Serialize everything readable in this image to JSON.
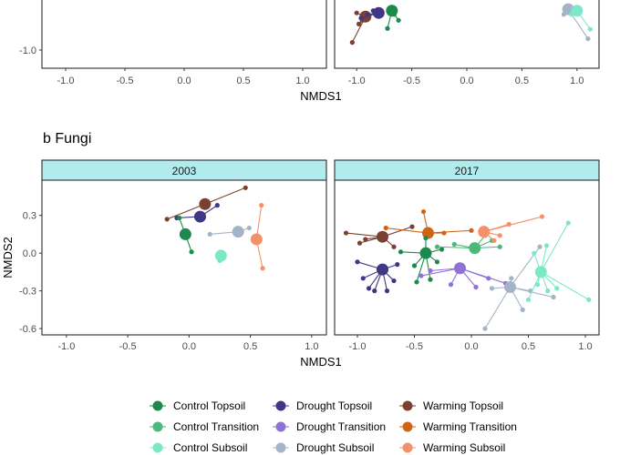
{
  "colors": {
    "Control Topsoil": "#1b8a4c",
    "Control Transition": "#4cb87a",
    "Control Subsoil": "#7de8c8",
    "Drought Topsoil": "#3f3785",
    "Drought Transition": "#8f72d6",
    "Drought Subsoil": "#a3b4c8",
    "Warming Topsoil": "#7a4030",
    "Warming Transition": "#cf6417",
    "Warming Subsoil": "#f4916a",
    "strip_fill": "#b2ebed"
  },
  "legend": [
    "Control Topsoil",
    "Drought Topsoil",
    "Warming Topsoil",
    "Control Transition",
    "Drought Transition",
    "Warming Transition",
    "Control Subsoil",
    "Drought Subsoil",
    "Warming Subsoil"
  ],
  "chart_data": [
    {
      "type": "scatter",
      "title": "",
      "xlabel": "NMDS1",
      "ylabel": "",
      "x_ticks": [
        "-1.0",
        "-0.5",
        "0.0",
        "0.5",
        "1.0"
      ],
      "y_ticks": [
        "-1.0"
      ],
      "xlim": [
        -1.2,
        1.2
      ],
      "facets": [
        {
          "label": "",
          "xlim": [
            -1.2,
            1.2
          ],
          "ylim": [
            -1.2,
            -0.25
          ],
          "groups": []
        },
        {
          "label": "",
          "xlim": [
            -1.2,
            1.2
          ],
          "ylim": [
            -1.2,
            -0.25
          ],
          "groups": [
            {
              "name": "Warming Topsoil",
              "centroid": [
                -0.92,
                -0.5
              ],
              "points": [
                [
                  -1.04,
                  -0.85
                ],
                [
                  -0.98,
                  -0.6
                ],
                [
                  -0.95,
                  -0.55
                ],
                [
                  -1.0,
                  -0.45
                ]
              ]
            },
            {
              "name": "Drought Topsoil",
              "centroid": [
                -0.8,
                -0.45
              ],
              "points": [
                [
                  -0.96,
                  -0.52
                ],
                [
                  -0.9,
                  -0.47
                ],
                [
                  -0.85,
                  -0.42
                ]
              ]
            },
            {
              "name": "Control Topsoil",
              "centroid": [
                -0.68,
                -0.42
              ],
              "points": [
                [
                  -0.72,
                  -0.66
                ],
                [
                  -0.62,
                  -0.55
                ],
                [
                  -0.66,
                  -0.47
                ]
              ]
            },
            {
              "name": "Drought Subsoil",
              "centroid": [
                0.92,
                -0.4
              ],
              "points": [
                [
                  1.1,
                  -0.8
                ],
                [
                  0.88,
                  -0.47
                ]
              ]
            },
            {
              "name": "Control Subsoil",
              "centroid": [
                1.0,
                -0.42
              ],
              "points": [
                [
                  1.12,
                  -0.67
                ],
                [
                  0.95,
                  -0.47
                ]
              ]
            }
          ]
        }
      ]
    },
    {
      "type": "scatter",
      "title": "b  Fungi",
      "xlabel": "NMDS1",
      "ylabel": "NMDS2",
      "x_ticks": [
        "-1.0",
        "-0.5",
        "0.0",
        "0.5",
        "1.0"
      ],
      "y_ticks": [
        "0.3",
        "0.0",
        "-0.3",
        "-0.6"
      ],
      "xlim": [
        -1.2,
        1.12
      ],
      "ylim": [
        -0.65,
        0.58
      ],
      "facets": [
        {
          "label": "2003",
          "xlim": [
            -1.2,
            1.12
          ],
          "ylim": [
            -0.65,
            0.58
          ],
          "groups": [
            {
              "name": "Warming Topsoil",
              "centroid": [
                0.13,
                0.39
              ],
              "points": [
                [
                  0.46,
                  0.52
                ],
                [
                  -0.18,
                  0.27
                ]
              ]
            },
            {
              "name": "Drought Topsoil",
              "centroid": [
                0.09,
                0.29
              ],
              "points": [
                [
                  0.23,
                  0.38
                ],
                [
                  -0.1,
                  0.28
                ]
              ]
            },
            {
              "name": "Control Topsoil",
              "centroid": [
                -0.03,
                0.15
              ],
              "points": [
                [
                  -0.08,
                  0.28
                ],
                [
                  0.02,
                  0.01
                ]
              ]
            },
            {
              "name": "Control Subsoil",
              "centroid": [
                0.26,
                -0.02
              ],
              "points": [
                [
                  0.25,
                  -0.06
                ],
                [
                  0.27,
                  -0.01
                ],
                [
                  0.24,
                  -0.03
                ]
              ]
            },
            {
              "name": "Drought Subsoil",
              "centroid": [
                0.4,
                0.17
              ],
              "points": [
                [
                  0.17,
                  0.15
                ],
                [
                  0.49,
                  0.2
                ]
              ]
            },
            {
              "name": "Warming Subsoil",
              "centroid": [
                0.55,
                0.11
              ],
              "points": [
                [
                  0.59,
                  0.38
                ],
                [
                  0.6,
                  -0.12
                ]
              ]
            }
          ]
        },
        {
          "label": "2017",
          "xlim": [
            -1.2,
            1.12
          ],
          "ylim": [
            -0.65,
            0.58
          ],
          "groups": [
            {
              "name": "Warming Topsoil",
              "centroid": [
                -0.78,
                0.13
              ],
              "points": [
                [
                  -1.1,
                  0.16
                ],
                [
                  -0.98,
                  0.08
                ],
                [
                  -0.93,
                  0.11
                ],
                [
                  -0.68,
                  0.05
                ],
                [
                  -0.52,
                  0.21
                ]
              ]
            },
            {
              "name": "Warming Transition",
              "centroid": [
                -0.38,
                0.16
              ],
              "points": [
                [
                  -0.75,
                  0.2
                ],
                [
                  -0.42,
                  0.33
                ],
                [
                  -0.24,
                  0.16
                ],
                [
                  0.0,
                  0.18
                ]
              ]
            },
            {
              "name": "Drought Topsoil",
              "centroid": [
                -0.78,
                -0.13
              ],
              "points": [
                [
                  -0.95,
                  -0.2
                ],
                [
                  -0.9,
                  -0.28
                ],
                [
                  -0.85,
                  -0.3
                ],
                [
                  -1.0,
                  -0.07
                ],
                [
                  -0.65,
                  -0.09
                ],
                [
                  -0.68,
                  -0.22
                ],
                [
                  -0.74,
                  -0.3
                ]
              ]
            },
            {
              "name": "Control Topsoil",
              "centroid": [
                -0.4,
                0.0
              ],
              "points": [
                [
                  -0.62,
                  0.01
                ],
                [
                  -0.5,
                  -0.1
                ],
                [
                  -0.48,
                  -0.23
                ],
                [
                  -0.36,
                  -0.21
                ],
                [
                  -0.26,
                  0.03
                ],
                [
                  -0.3,
                  -0.07
                ],
                [
                  -0.4,
                  0.12
                ]
              ]
            },
            {
              "name": "Control Transition",
              "centroid": [
                0.03,
                0.04
              ],
              "points": [
                [
                  -0.3,
                  0.05
                ],
                [
                  -0.15,
                  0.07
                ],
                [
                  0.12,
                  0.14
                ],
                [
                  0.25,
                  0.05
                ],
                [
                  0.18,
                  0.1
                ]
              ]
            },
            {
              "name": "Drought Transition",
              "centroid": [
                -0.1,
                -0.12
              ],
              "points": [
                [
                  -0.44,
                  -0.18
                ],
                [
                  -0.36,
                  -0.14
                ],
                [
                  0.15,
                  -0.2
                ],
                [
                  0.3,
                  -0.24
                ],
                [
                  -0.18,
                  -0.25
                ],
                [
                  0.04,
                  -0.27
                ]
              ]
            },
            {
              "name": "Warming Subsoil",
              "centroid": [
                0.11,
                0.17
              ],
              "points": [
                [
                  0.62,
                  0.29
                ],
                [
                  0.33,
                  0.23
                ],
                [
                  0.2,
                  0.1
                ],
                [
                  0.25,
                  0.14
                ]
              ]
            },
            {
              "name": "Drought Subsoil",
              "centroid": [
                0.34,
                -0.27
              ],
              "points": [
                [
                  0.12,
                  -0.6
                ],
                [
                  0.45,
                  -0.45
                ],
                [
                  0.6,
                  0.05
                ],
                [
                  0.72,
                  -0.35
                ],
                [
                  0.35,
                  -0.2
                ],
                [
                  0.18,
                  -0.28
                ],
                [
                  0.52,
                  -0.3
                ]
              ]
            },
            {
              "name": "Control Subsoil",
              "centroid": [
                0.61,
                -0.15
              ],
              "points": [
                [
                  0.85,
                  0.24
                ],
                [
                  1.03,
                  -0.37
                ],
                [
                  0.66,
                  0.06
                ],
                [
                  0.5,
                  -0.37
                ],
                [
                  0.67,
                  -0.3
                ],
                [
                  0.75,
                  -0.28
                ],
                [
                  0.58,
                  -0.25
                ],
                [
                  0.55,
                  0.0
                ]
              ]
            }
          ]
        }
      ]
    }
  ]
}
